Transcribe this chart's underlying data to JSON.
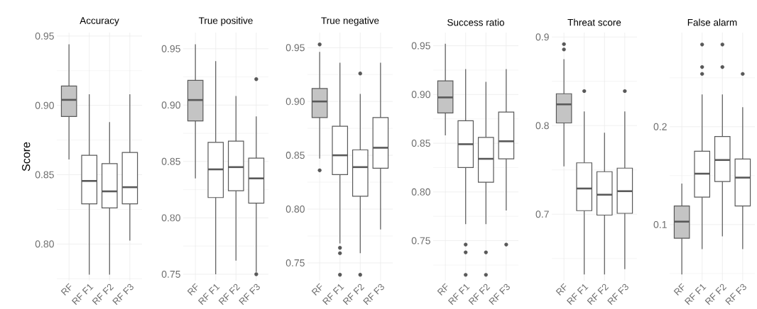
{
  "chart_data": [
    {
      "type": "box",
      "title": "Accuracy",
      "ylabel": "Score",
      "categories": [
        "RF",
        "RF F1",
        "RF F2",
        "RF F3"
      ],
      "colors": [
        "#c4c4c4",
        "#ffffff",
        "#ffffff",
        "#ffffff"
      ],
      "ylim": [
        0.7736,
        0.9525
      ],
      "yticks": [
        {
          "value": 0.8,
          "label": "0.80"
        },
        {
          "value": 0.85,
          "label": "0.85"
        },
        {
          "value": 0.9,
          "label": "0.90"
        },
        {
          "value": 0.95,
          "label": "0.95"
        }
      ],
      "grid": true,
      "boxes": [
        {
          "low": 0.861,
          "q1": 0.892,
          "median": 0.904,
          "q3": 0.914,
          "high": 0.944
        },
        {
          "low": 0.778,
          "q1": 0.829,
          "median": 0.8455,
          "q3": 0.864,
          "high": 0.908
        },
        {
          "low": 0.778,
          "q1": 0.826,
          "median": 0.838,
          "q3": 0.858,
          "high": 0.888
        },
        {
          "low": 0.8025,
          "q1": 0.829,
          "median": 0.841,
          "q3": 0.866,
          "high": 0.908
        }
      ]
    },
    {
      "type": "box",
      "title": "True positive",
      "categories": [
        "RF",
        "RF F1",
        "RF F2",
        "RF F3"
      ],
      "colors": [
        "#c4c4c4",
        "#ffffff",
        "#ffffff",
        "#ffffff"
      ],
      "ylim": [
        0.7443,
        0.9643
      ],
      "yticks": [
        {
          "value": 0.75,
          "label": "0.75"
        },
        {
          "value": 0.8,
          "label": "0.80"
        },
        {
          "value": 0.85,
          "label": "0.85"
        },
        {
          "value": 0.9,
          "label": "0.90"
        },
        {
          "value": 0.95,
          "label": "0.95"
        }
      ],
      "grid": true,
      "boxes": [
        {
          "low": 0.835,
          "q1": 0.886,
          "median": 0.9045,
          "q3": 0.922,
          "high": 0.954
        },
        {
          "low": 0.75,
          "q1": 0.818,
          "median": 0.843,
          "q3": 0.867,
          "high": 0.939
        },
        {
          "low": 0.762,
          "q1": 0.824,
          "median": 0.845,
          "q3": 0.868,
          "high": 0.908
        },
        {
          "low": 0.752,
          "q1": 0.813,
          "median": 0.835,
          "q3": 0.853,
          "high": 0.89,
          "outliers": [
            0.923,
            0.75
          ]
        }
      ]
    },
    {
      "type": "box",
      "title": "True negative",
      "categories": [
        "RF",
        "RF F1",
        "RF F2",
        "RF F3"
      ],
      "colors": [
        "#c4c4c4",
        "#ffffff",
        "#ffffff",
        "#ffffff"
      ],
      "ylim": [
        0.7335,
        0.964
      ],
      "yticks": [
        {
          "value": 0.75,
          "label": "0.75"
        },
        {
          "value": 0.8,
          "label": "0.80"
        },
        {
          "value": 0.85,
          "label": "0.85"
        },
        {
          "value": 0.9,
          "label": "0.90"
        },
        {
          "value": 0.95,
          "label": "0.95"
        }
      ],
      "grid": true,
      "boxes": [
        {
          "low": 0.847,
          "q1": 0.885,
          "median": 0.9,
          "q3": 0.912,
          "high": 0.946,
          "outliers": [
            0.953,
            0.836
          ]
        },
        {
          "low": 0.768,
          "q1": 0.832,
          "median": 0.85,
          "q3": 0.877,
          "high": 0.936,
          "outliers": [
            0.764,
            0.759,
            0.739
          ]
        },
        {
          "low": 0.759,
          "q1": 0.812,
          "median": 0.839,
          "q3": 0.855,
          "high": 0.907,
          "outliers": [
            0.926,
            0.739
          ]
        },
        {
          "low": 0.781,
          "q1": 0.838,
          "median": 0.857,
          "q3": 0.885,
          "high": 0.936
        }
      ]
    },
    {
      "type": "box",
      "title": "Success ratio",
      "categories": [
        "RF",
        "RF F1",
        "RF F2",
        "RF F3"
      ],
      "colors": [
        "#c4c4c4",
        "#ffffff",
        "#ffffff",
        "#ffffff"
      ],
      "ylim": [
        0.709,
        0.9635
      ],
      "yticks": [
        {
          "value": 0.75,
          "label": "0.75"
        },
        {
          "value": 0.8,
          "label": "0.80"
        },
        {
          "value": 0.85,
          "label": "0.85"
        },
        {
          "value": 0.9,
          "label": "0.90"
        },
        {
          "value": 0.95,
          "label": "0.95"
        }
      ],
      "grid": true,
      "boxes": [
        {
          "low": 0.858,
          "q1": 0.881,
          "median": 0.897,
          "q3": 0.914,
          "high": 0.952
        },
        {
          "low": 0.767,
          "q1": 0.825,
          "median": 0.849,
          "q3": 0.873,
          "high": 0.926,
          "outliers": [
            0.746,
            0.738,
            0.715
          ]
        },
        {
          "low": 0.767,
          "q1": 0.81,
          "median": 0.834,
          "q3": 0.856,
          "high": 0.913,
          "outliers": [
            0.738,
            0.715
          ]
        },
        {
          "low": 0.781,
          "q1": 0.834,
          "median": 0.852,
          "q3": 0.882,
          "high": 0.926,
          "outliers": [
            0.746
          ]
        }
      ]
    },
    {
      "type": "box",
      "title": "Threat score",
      "categories": [
        "RF",
        "RF F1",
        "RF F2",
        "RF F3"
      ],
      "colors": [
        "#c4c4c4",
        "#ffffff",
        "#ffffff",
        "#ffffff"
      ],
      "ylim": [
        0.625,
        0.905
      ],
      "yticks": [
        0.7,
        0.8,
        0.9
      ],
      "grid": true,
      "boxes": [
        {
          "low": 0.754,
          "q1": 0.803,
          "median": 0.824,
          "q3": 0.836,
          "high": 0.875,
          "outliers": [
            0.892,
            0.886
          ]
        },
        {
          "low": 0.632,
          "q1": 0.704,
          "median": 0.729,
          "q3": 0.758,
          "high": 0.816,
          "outliers": [
            0.839
          ]
        },
        {
          "low": 0.632,
          "q1": 0.699,
          "median": 0.722,
          "q3": 0.748,
          "high": 0.792
        },
        {
          "low": 0.638,
          "q1": 0.701,
          "median": 0.726,
          "q3": 0.752,
          "high": 0.816,
          "outliers": [
            0.839
          ]
        }
      ]
    },
    {
      "type": "box",
      "title": "False alarm",
      "categories": [
        "RF",
        "RF F1",
        "RF F2",
        "RF F3"
      ],
      "colors": [
        "#c4c4c4",
        "#ffffff",
        "#ffffff",
        "#ffffff"
      ],
      "ylim": [
        0.0427,
        0.2962
      ],
      "yticks": [
        0.1,
        0.2
      ],
      "grid": true,
      "boxes": [
        {
          "low": 0.049,
          "q1": 0.086,
          "median": 0.103,
          "q3": 0.119,
          "high": 0.142
        },
        {
          "low": 0.075,
          "q1": 0.128,
          "median": 0.152,
          "q3": 0.175,
          "high": 0.233,
          "outliers": [
            0.284,
            0.261,
            0.254
          ]
        },
        {
          "low": 0.088,
          "q1": 0.144,
          "median": 0.166,
          "q3": 0.19,
          "high": 0.233,
          "outliers": [
            0.284,
            0.261
          ]
        },
        {
          "low": 0.075,
          "q1": 0.119,
          "median": 0.148,
          "q3": 0.167,
          "high": 0.22,
          "outliers": [
            0.254
          ]
        }
      ]
    }
  ]
}
